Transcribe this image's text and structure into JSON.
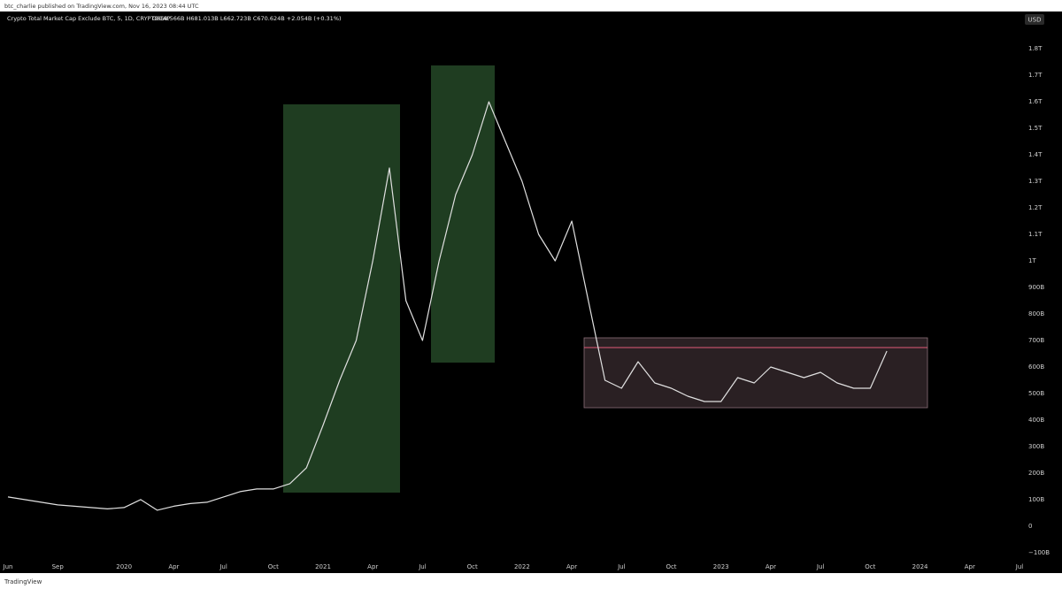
{
  "chart_data": {
    "type": "line",
    "attribution": "btc_charlie published on TradingView.com, Nov 16, 2023 08:44 UTC",
    "title": "Crypto Total Market Cap Exclude BTC, 5, 1D, CRYPTOCAP",
    "subtitle": "O668.566B H681.013B L662.723B C670.624B +2.054B (+0.31%)",
    "currency": "USD",
    "footer": "TradingView",
    "color": "#e0e0e0",
    "grid": false,
    "x": [
      "2019-06",
      "2019-07",
      "2019-08",
      "2019-09",
      "2019-10",
      "2019-11",
      "2019-12",
      "2020-01",
      "2020-02",
      "2020-03",
      "2020-04",
      "2020-05",
      "2020-06",
      "2020-07",
      "2020-08",
      "2020-09",
      "2020-10",
      "2020-11",
      "2020-12",
      "2021-01",
      "2021-02",
      "2021-03",
      "2021-04",
      "2021-05",
      "2021-06",
      "2021-07",
      "2021-08",
      "2021-09",
      "2021-10",
      "2021-11",
      "2021-12",
      "2022-01",
      "2022-02",
      "2022-03",
      "2022-04",
      "2022-05",
      "2022-06",
      "2022-07",
      "2022-08",
      "2022-09",
      "2022-10",
      "2022-11",
      "2022-12",
      "2023-01",
      "2023-02",
      "2023-03",
      "2023-04",
      "2023-05",
      "2023-06",
      "2023-07",
      "2023-08",
      "2023-09",
      "2023-10",
      "2023-11"
    ],
    "values": [
      110,
      100,
      90,
      80,
      75,
      70,
      65,
      70,
      100,
      60,
      75,
      85,
      90,
      110,
      130,
      140,
      140,
      160,
      220,
      380,
      550,
      700,
      1000,
      1350,
      850,
      700,
      1000,
      1250,
      1400,
      1600,
      1450,
      1300,
      1100,
      1000,
      1150,
      850,
      550,
      520,
      620,
      540,
      520,
      490,
      470,
      470,
      560,
      540,
      600,
      580,
      560,
      580,
      540,
      520,
      520,
      660
    ],
    "xlim": [
      "2019-06",
      "2024-07"
    ],
    "xticks": [
      {
        "value": "2019-06",
        "label": "Jun"
      },
      {
        "value": "2019-09",
        "label": "Sep"
      },
      {
        "value": "2020-01",
        "label": "2020"
      },
      {
        "value": "2020-04",
        "label": "Apr"
      },
      {
        "value": "2020-07",
        "label": "Jul"
      },
      {
        "value": "2020-10",
        "label": "Oct"
      },
      {
        "value": "2021-01",
        "label": "2021"
      },
      {
        "value": "2021-04",
        "label": "Apr"
      },
      {
        "value": "2021-07",
        "label": "Jul"
      },
      {
        "value": "2021-10",
        "label": "Oct"
      },
      {
        "value": "2022-01",
        "label": "2022"
      },
      {
        "value": "2022-04",
        "label": "Apr"
      },
      {
        "value": "2022-07",
        "label": "Jul"
      },
      {
        "value": "2022-10",
        "label": "Oct"
      },
      {
        "value": "2023-01",
        "label": "2023"
      },
      {
        "value": "2023-04",
        "label": "Apr"
      },
      {
        "value": "2023-07",
        "label": "Jul"
      },
      {
        "value": "2023-10",
        "label": "Oct"
      },
      {
        "value": "2024-01",
        "label": "2024"
      },
      {
        "value": "2024-04",
        "label": "Apr"
      },
      {
        "value": "2024-07",
        "label": "Jul"
      }
    ],
    "ylim": [
      -117,
      1937
    ],
    "yticks": [
      {
        "value": -100,
        "label": "−100B"
      },
      0,
      {
        "value": 100,
        "label": "100B"
      },
      {
        "value": 200,
        "label": "200B"
      },
      {
        "value": 300,
        "label": "300B"
      },
      {
        "value": 400,
        "label": "400B"
      },
      {
        "value": 500,
        "label": "500B"
      },
      {
        "value": 600,
        "label": "600B"
      },
      {
        "value": 700,
        "label": "700B"
      },
      {
        "value": 800,
        "label": "800B"
      },
      {
        "value": 900,
        "label": "900B"
      },
      {
        "value": 1000,
        "label": "1T"
      },
      {
        "value": 1100,
        "label": "1.1T"
      },
      {
        "value": 1200,
        "label": "1.2T"
      },
      {
        "value": 1300,
        "label": "1.3T"
      },
      {
        "value": 1400,
        "label": "1.4T"
      },
      {
        "value": 1500,
        "label": "1.5T"
      },
      {
        "value": 1600,
        "label": "1.6T"
      },
      {
        "value": 1700,
        "label": "1.7T"
      },
      {
        "value": 1800,
        "label": "1.8T"
      }
    ]
  }
}
